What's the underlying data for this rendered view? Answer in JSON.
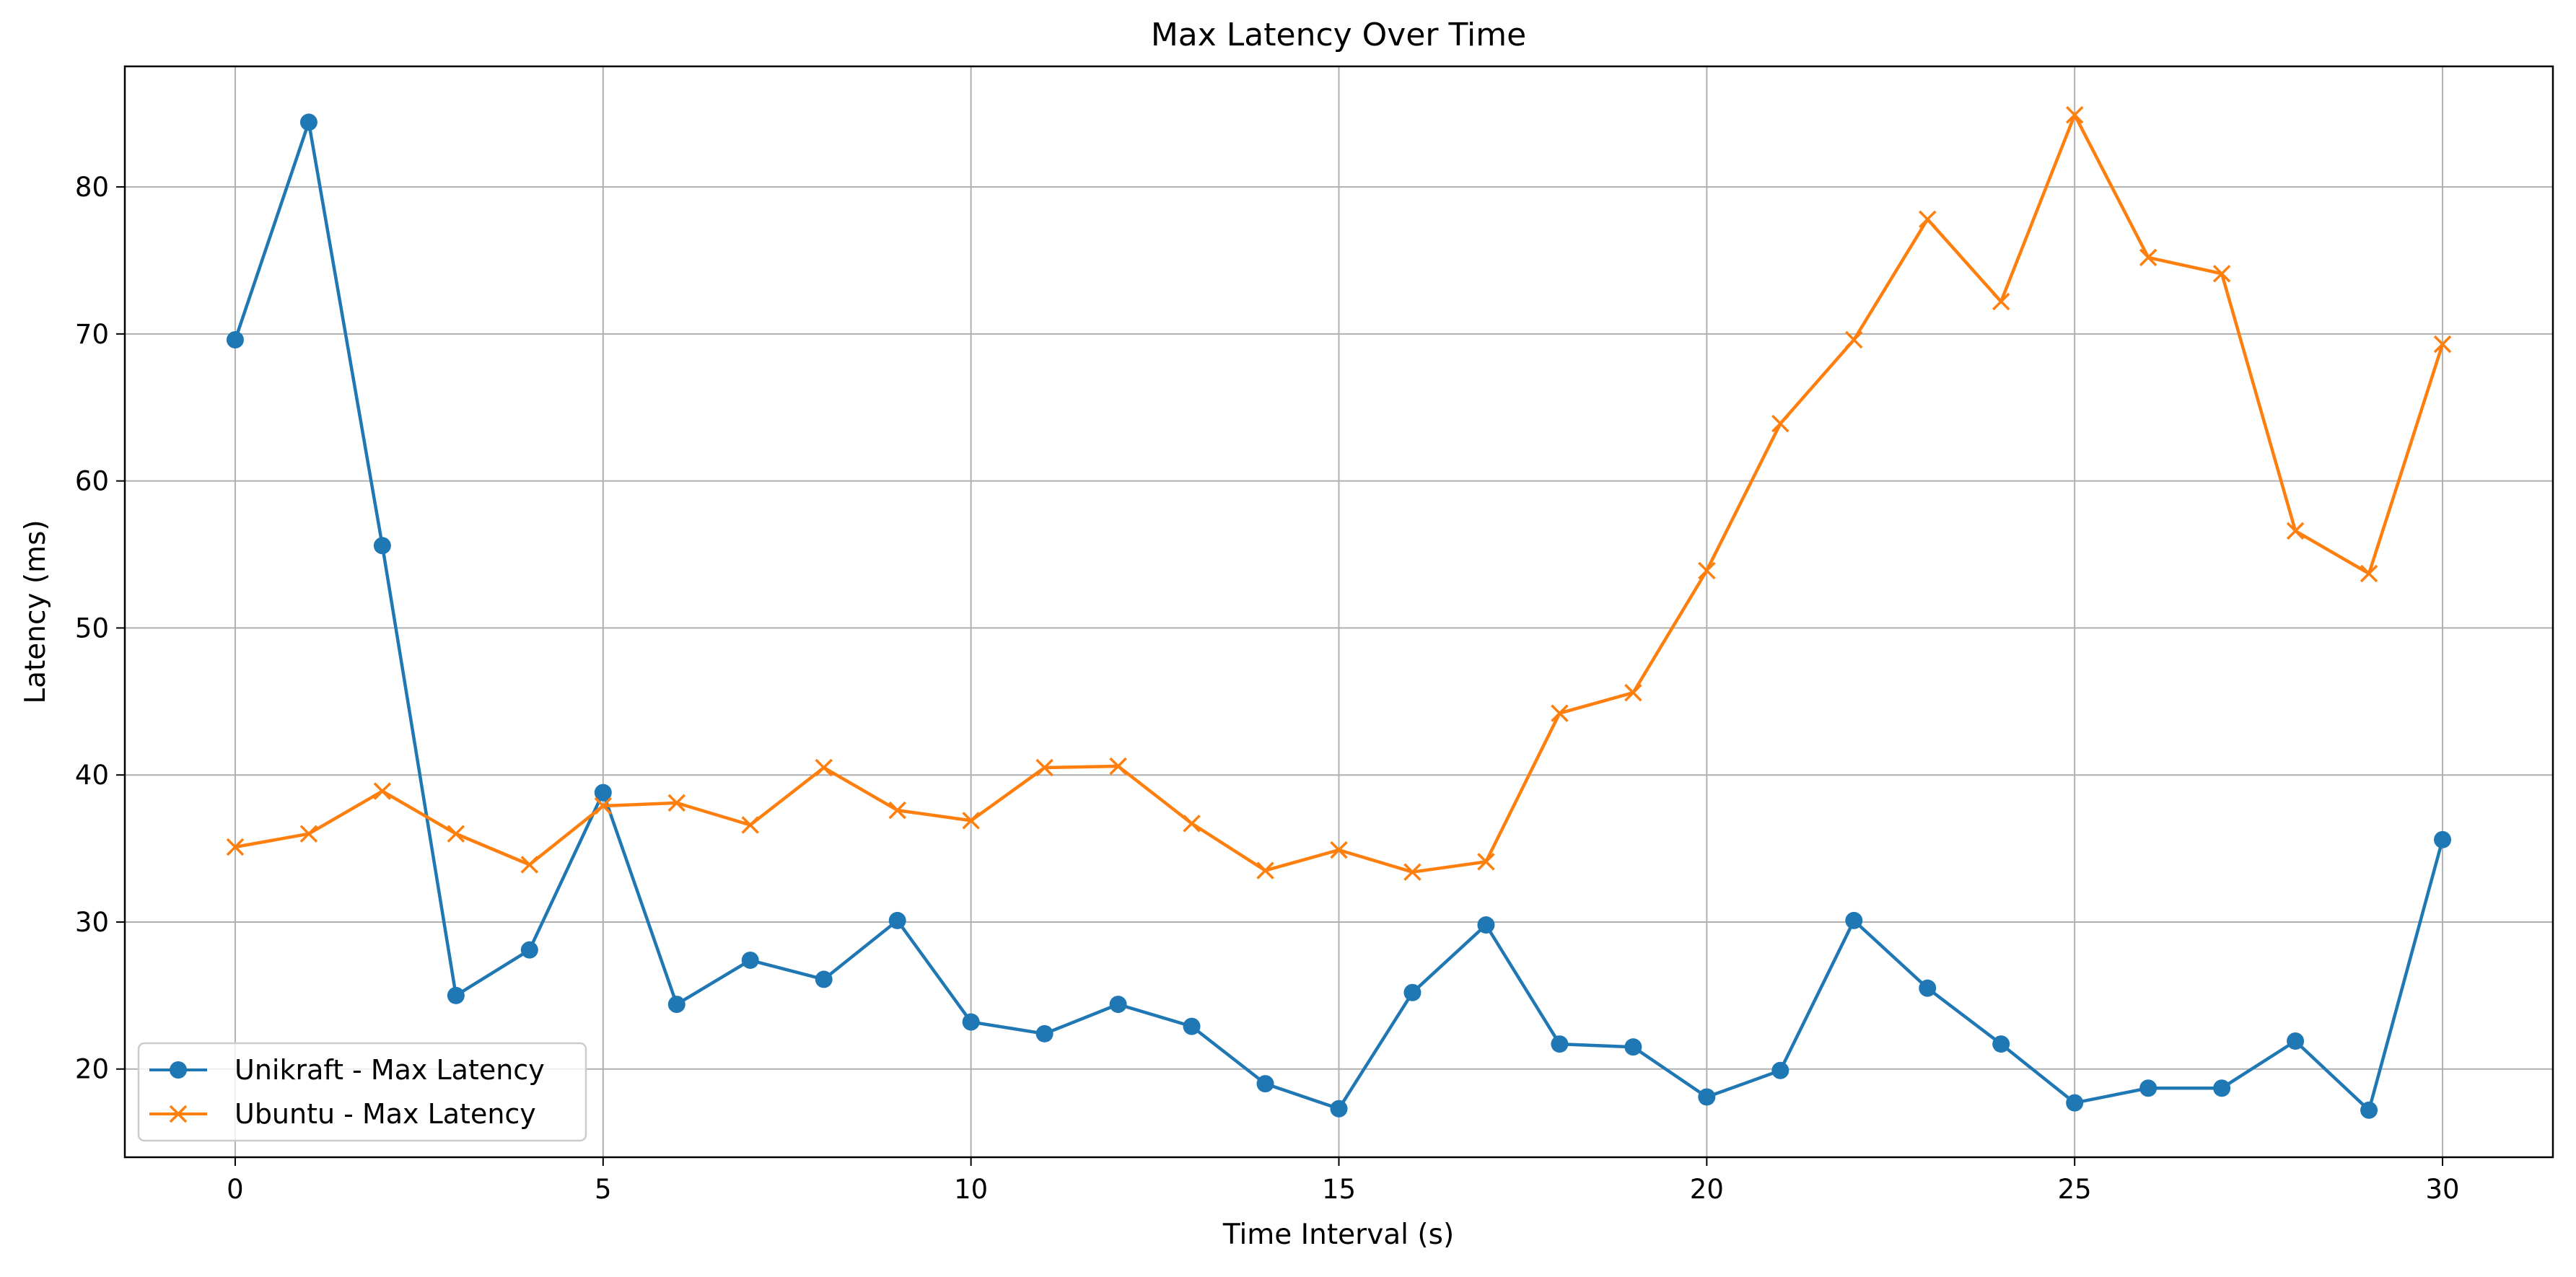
{
  "chart_data": {
    "type": "line",
    "title": "Max Latency Over Time",
    "xlabel": "Time Interval (s)",
    "ylabel": "Latency (ms)",
    "xlim": [
      -1.5,
      31.5
    ],
    "ylim": [
      14.0,
      88.2
    ],
    "xticks": [
      0,
      5,
      10,
      15,
      20,
      25,
      30
    ],
    "yticks": [
      20,
      30,
      40,
      50,
      60,
      70,
      80
    ],
    "grid": true,
    "legend_position": "lower-left",
    "x": [
      0,
      1,
      2,
      3,
      4,
      5,
      6,
      7,
      8,
      9,
      10,
      11,
      12,
      13,
      14,
      15,
      16,
      17,
      18,
      19,
      20,
      21,
      22,
      23,
      24,
      25,
      26,
      27,
      28,
      29,
      30
    ],
    "series": [
      {
        "name": "Unikraft - Max Latency",
        "color": "#1f77b4",
        "marker": "circle",
        "values": [
          69.6,
          84.4,
          55.6,
          25.0,
          28.1,
          38.8,
          24.4,
          27.4,
          26.1,
          30.1,
          23.2,
          22.4,
          24.4,
          22.9,
          19.0,
          17.3,
          25.2,
          29.8,
          21.7,
          21.5,
          18.1,
          19.9,
          30.1,
          25.5,
          21.7,
          17.7,
          18.7,
          18.7,
          21.9,
          17.2,
          35.6
        ]
      },
      {
        "name": "Ubuntu - Max Latency",
        "color": "#ff7f0e",
        "marker": "x",
        "values": [
          35.1,
          36.0,
          38.9,
          36.0,
          33.9,
          37.9,
          38.1,
          36.6,
          40.5,
          37.6,
          36.9,
          40.5,
          40.6,
          36.7,
          33.5,
          34.9,
          33.4,
          34.1,
          44.2,
          45.6,
          53.9,
          63.9,
          69.6,
          77.8,
          72.2,
          84.9,
          75.2,
          74.1,
          56.6,
          53.7,
          69.3
        ]
      }
    ]
  }
}
